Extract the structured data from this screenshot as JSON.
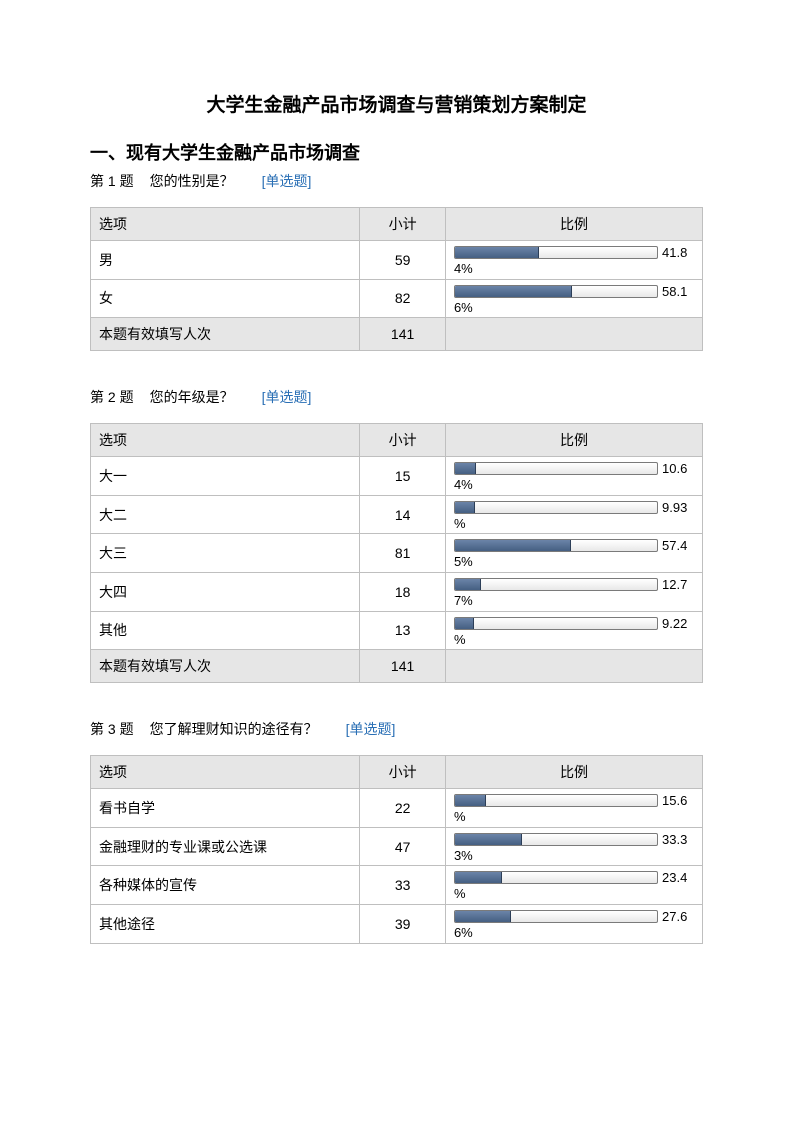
{
  "title": "大学生金融产品市场调查与营销策划方案制定",
  "section_heading": "一、现有大学生金融产品市场调查",
  "table_headers": {
    "option": "选项",
    "count": "小计",
    "ratio": "比例"
  },
  "total_label": "本题有效填写人次",
  "tag_text": "[单选题]",
  "tag_color": "#2a6fb5",
  "bar_fill": "#4e6a8f",
  "bar_bg": "#f2f2f2",
  "border_color": "#bfbfbf",
  "header_bg": "#e6e6e6",
  "questions": [
    {
      "num": "第 1 题",
      "text": "您的性别是？",
      "rows": [
        {
          "label": "男",
          "count": 59,
          "pct": 41.84,
          "pct_top": "41.8",
          "pct_bottom": "4%"
        },
        {
          "label": "女",
          "count": 82,
          "pct": 58.16,
          "pct_top": "58.1",
          "pct_bottom": "6%"
        }
      ],
      "total": 141
    },
    {
      "num": "第 2 题",
      "text": "您的年级是？",
      "rows": [
        {
          "label": "大一",
          "count": 15,
          "pct": 10.64,
          "pct_top": "10.6",
          "pct_bottom": "4%"
        },
        {
          "label": "大二",
          "count": 14,
          "pct": 9.93,
          "pct_top": "9.93",
          "pct_bottom": "%"
        },
        {
          "label": "大三",
          "count": 81,
          "pct": 57.45,
          "pct_top": "57.4",
          "pct_bottom": "5%"
        },
        {
          "label": "大四",
          "count": 18,
          "pct": 12.77,
          "pct_top": "12.7",
          "pct_bottom": "7%"
        },
        {
          "label": "其他",
          "count": 13,
          "pct": 9.22,
          "pct_top": "9.22",
          "pct_bottom": "%"
        }
      ],
      "total": 141
    },
    {
      "num": "第 3 题",
      "text": "您了解理财知识的途径有？",
      "rows": [
        {
          "label": "看书自学",
          "count": 22,
          "pct": 15.6,
          "pct_top": "15.6",
          "pct_bottom": "%"
        },
        {
          "label": "金融理财的专业课或公选课",
          "count": 47,
          "pct": 33.33,
          "pct_top": "33.3",
          "pct_bottom": "3%"
        },
        {
          "label": "各种媒体的宣传",
          "count": 33,
          "pct": 23.4,
          "pct_top": "23.4",
          "pct_bottom": "%"
        },
        {
          "label": "其他途径",
          "count": 39,
          "pct": 27.66,
          "pct_top": "27.6",
          "pct_bottom": "6%"
        }
      ],
      "total": null
    }
  ]
}
